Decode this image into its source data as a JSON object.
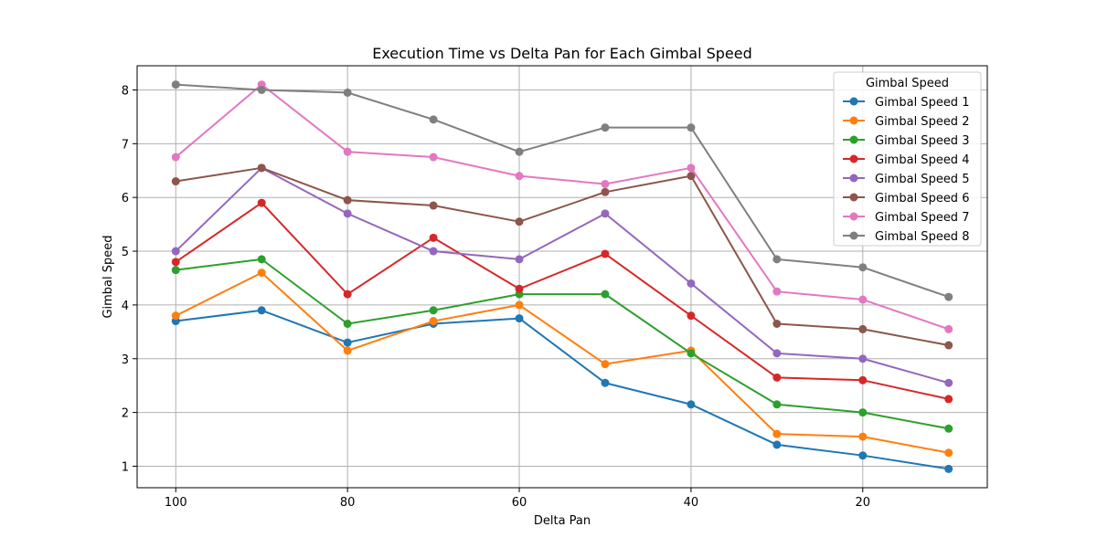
{
  "chart_data": {
    "type": "line",
    "title": "Execution Time vs Delta Pan for Each Gimbal Speed",
    "xlabel": "Delta Pan",
    "ylabel": "Gimbal Speed",
    "x": [
      100,
      90,
      80,
      70,
      60,
      50,
      40,
      30,
      20,
      10
    ],
    "xlim": [
      104.5,
      5.5
    ],
    "ylim": [
      0.6,
      8.45
    ],
    "xticks": [
      100,
      80,
      60,
      40,
      20
    ],
    "yticks": [
      1,
      2,
      3,
      4,
      5,
      6,
      7,
      8
    ],
    "grid": true,
    "x_inverted": true,
    "legend": {
      "title": "Gimbal Speed",
      "position": "top-right"
    },
    "series": [
      {
        "name": "Gimbal Speed 1",
        "color": "#1f77b4",
        "values": [
          3.7,
          3.9,
          3.3,
          3.65,
          3.75,
          2.55,
          2.15,
          1.4,
          1.2,
          0.95
        ]
      },
      {
        "name": "Gimbal Speed 2",
        "color": "#ff7f0e",
        "values": [
          3.8,
          4.6,
          3.15,
          3.7,
          4.0,
          2.9,
          3.15,
          1.6,
          1.55,
          1.25
        ]
      },
      {
        "name": "Gimbal Speed 3",
        "color": "#2ca02c",
        "values": [
          4.65,
          4.85,
          3.65,
          3.9,
          4.2,
          4.2,
          3.1,
          2.15,
          2.0,
          1.7
        ]
      },
      {
        "name": "Gimbal Speed 4",
        "color": "#d62728",
        "values": [
          4.8,
          5.9,
          4.2,
          5.25,
          4.3,
          4.95,
          3.8,
          2.65,
          2.6,
          2.25
        ]
      },
      {
        "name": "Gimbal Speed 5",
        "color": "#9467bd",
        "values": [
          5.0,
          6.55,
          5.7,
          5.0,
          4.85,
          5.7,
          4.4,
          3.1,
          3.0,
          2.55
        ]
      },
      {
        "name": "Gimbal Speed 6",
        "color": "#8c564b",
        "values": [
          6.3,
          6.55,
          5.95,
          5.85,
          5.55,
          6.1,
          6.4,
          3.65,
          3.55,
          3.25
        ]
      },
      {
        "name": "Gimbal Speed 7",
        "color": "#e377c2",
        "values": [
          6.75,
          8.1,
          6.85,
          6.75,
          6.4,
          6.25,
          6.55,
          4.25,
          4.1,
          3.55
        ]
      },
      {
        "name": "Gimbal Speed 8",
        "color": "#7f7f7f",
        "values": [
          8.1,
          8.0,
          7.95,
          7.45,
          6.85,
          7.3,
          7.3,
          4.85,
          4.7,
          4.15
        ]
      }
    ]
  }
}
